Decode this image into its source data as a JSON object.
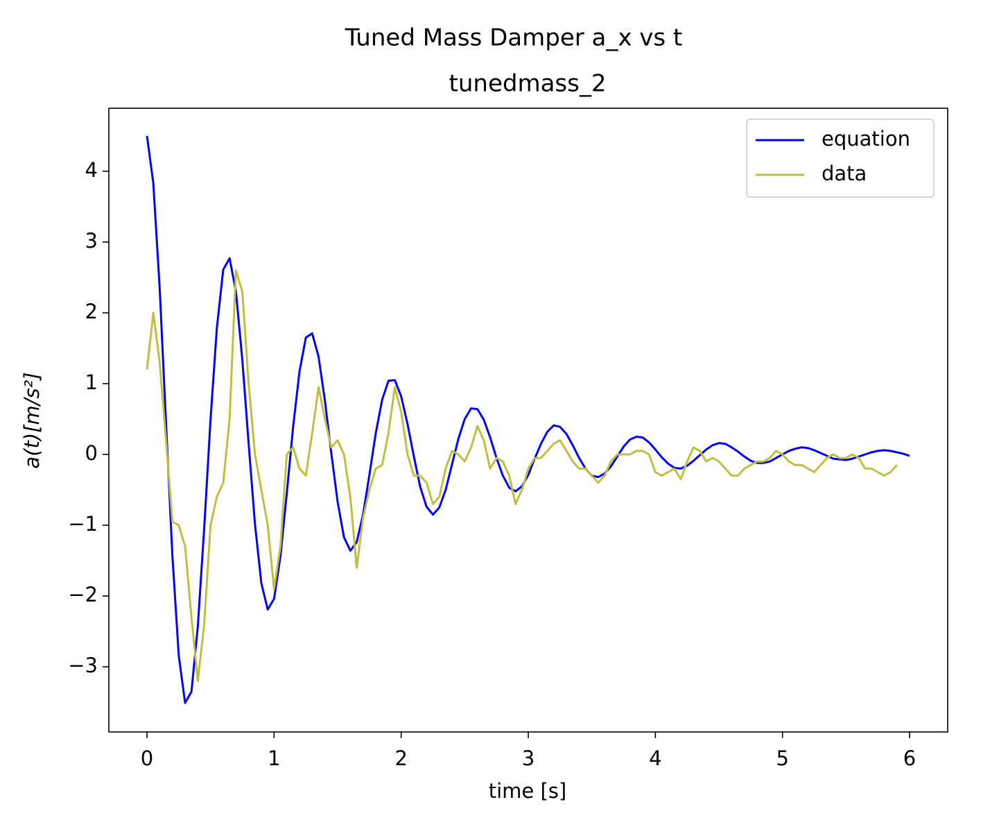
{
  "chart_data": {
    "type": "line",
    "title": "Tuned Mass Damper a_x vs t",
    "subtitle": "tunedmass_2",
    "x_label": "time [s]",
    "y_label": "a(t)[m/s²]",
    "x": [
      0,
      0.05,
      0.1,
      0.15,
      0.2,
      0.25,
      0.3,
      0.35,
      0.4,
      0.45,
      0.5,
      0.55,
      0.6,
      0.65,
      0.7,
      0.75,
      0.8,
      0.85,
      0.9,
      0.95,
      1,
      1.05,
      1.1,
      1.15,
      1.2,
      1.25,
      1.3,
      1.35,
      1.4,
      1.45,
      1.5,
      1.55,
      1.6,
      1.65,
      1.7,
      1.75,
      1.8,
      1.85,
      1.9,
      1.95,
      2,
      2.05,
      2.1,
      2.15,
      2.2,
      2.25,
      2.3,
      2.35,
      2.4,
      2.45,
      2.5,
      2.55,
      2.6,
      2.65,
      2.7,
      2.75,
      2.8,
      2.85,
      2.9,
      2.95,
      3,
      3.05,
      3.1,
      3.15,
      3.2,
      3.25,
      3.3,
      3.35,
      3.4,
      3.45,
      3.5,
      3.55,
      3.6,
      3.65,
      3.7,
      3.75,
      3.8,
      3.85,
      3.9,
      3.95,
      4,
      4.05,
      4.1,
      4.15,
      4.2,
      4.25,
      4.3,
      4.35,
      4.4,
      4.45,
      4.5,
      4.55,
      4.6,
      4.65,
      4.7,
      4.75,
      4.8,
      4.85,
      4.9,
      4.95,
      5,
      5.05,
      5.1,
      5.15,
      5.2,
      5.25,
      5.3,
      5.35,
      5.4,
      5.45,
      5.5,
      5.55,
      5.6,
      5.65,
      5.7,
      5.75,
      5.8,
      5.85,
      5.9,
      5.95,
      6
    ],
    "series": [
      {
        "name": "equation",
        "color": "#0000ff",
        "values": [
          4.5,
          3.83,
          2.35,
          0.44,
          -1.43,
          -2.84,
          -3.51,
          -3.35,
          -2.43,
          -1.05,
          0.49,
          1.79,
          2.61,
          2.77,
          2.3,
          1.34,
          0.15,
          -0.99,
          -1.82,
          -2.19,
          -2.04,
          -1.44,
          -0.55,
          0.39,
          1.17,
          1.65,
          1.71,
          1.38,
          0.76,
          0.02,
          -0.67,
          -1.17,
          -1.36,
          -1.24,
          -0.85,
          -0.29,
          0.3,
          0.77,
          1.04,
          1.05,
          0.82,
          0.43,
          -0.03,
          -0.46,
          -0.74,
          -0.85,
          -0.75,
          -0.5,
          -0.14,
          0.22,
          0.5,
          0.65,
          0.64,
          0.49,
          0.24,
          -0.05,
          -0.3,
          -0.47,
          -0.52,
          -0.45,
          -0.29,
          -0.06,
          0.15,
          0.32,
          0.41,
          0.39,
          0.29,
          0.13,
          -0.05,
          -0.2,
          -0.3,
          -0.32,
          -0.27,
          -0.17,
          -0.03,
          0.11,
          0.21,
          0.25,
          0.24,
          0.17,
          0.07,
          -0.04,
          -0.13,
          -0.19,
          -0.2,
          -0.16,
          -0.09,
          -0.01,
          0.07,
          0.13,
          0.16,
          0.15,
          0.1,
          0.04,
          -0.03,
          -0.09,
          -0.12,
          -0.12,
          -0.1,
          -0.05,
          0,
          0.05,
          0.08,
          0.1,
          0.09,
          0.06,
          0.02,
          -0.02,
          -0.06,
          -0.07,
          -0.08,
          -0.06,
          -0.03,
          0,
          0.03,
          0.05,
          0.06,
          0.05,
          0.03,
          0.01,
          -0.02
        ]
      },
      {
        "name": "data",
        "color": "#bfbf3f",
        "values": [
          1.2,
          2.0,
          1.3,
          0.2,
          -0.95,
          -1.0,
          -1.3,
          -2.3,
          -3.2,
          -2.4,
          -1.0,
          -0.6,
          -0.4,
          0.5,
          2.6,
          2.3,
          1.0,
          0.0,
          -0.5,
          -1.0,
          -1.9,
          -1.3,
          0.0,
          0.1,
          -0.2,
          -0.3,
          0.3,
          0.95,
          0.5,
          0.1,
          0.2,
          0.0,
          -0.6,
          -1.6,
          -0.9,
          -0.5,
          -0.2,
          -0.15,
          0.3,
          0.95,
          0.6,
          0.0,
          -0.3,
          -0.3,
          -0.4,
          -0.7,
          -0.6,
          -0.2,
          0.05,
          0.0,
          -0.1,
          0.1,
          0.4,
          0.2,
          -0.2,
          -0.05,
          -0.1,
          -0.3,
          -0.7,
          -0.5,
          -0.2,
          -0.05,
          -0.05,
          0.05,
          0.15,
          0.2,
          0.05,
          -0.1,
          -0.2,
          -0.2,
          -0.3,
          -0.4,
          -0.3,
          -0.1,
          0.0,
          0.0,
          0.0,
          0.05,
          0.05,
          0.0,
          -0.25,
          -0.3,
          -0.25,
          -0.2,
          -0.35,
          -0.1,
          0.1,
          0.05,
          -0.1,
          -0.05,
          -0.1,
          -0.2,
          -0.3,
          -0.3,
          -0.2,
          -0.15,
          -0.1,
          -0.1,
          -0.05,
          0.05,
          0.0,
          -0.1,
          -0.15,
          -0.15,
          -0.2,
          -0.25,
          -0.15,
          -0.05,
          0.0,
          -0.05,
          -0.05,
          0.0,
          -0.05,
          -0.2,
          -0.2,
          -0.25,
          -0.3,
          -0.25,
          -0.15,
          null,
          null
        ]
      }
    ],
    "xlim": [
      -0.3,
      6.3
    ],
    "ylim": [
      -3.92,
      4.89
    ],
    "xticks": [
      0,
      1,
      2,
      3,
      4,
      5,
      6
    ],
    "yticks": [
      {
        "value": -3,
        "label": "−3"
      },
      {
        "value": -2,
        "label": "−2"
      },
      {
        "value": -1,
        "label": "−1"
      },
      0,
      1,
      2,
      3,
      4
    ],
    "grid": false,
    "legend": "upper-right"
  }
}
